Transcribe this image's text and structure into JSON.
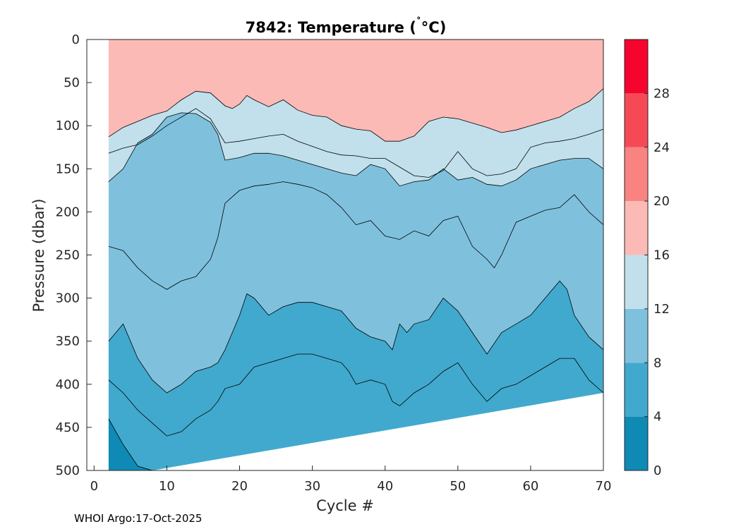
{
  "chart_data": {
    "type": "contour",
    "title": "7842:  Temperature (",
    "title_unit": "°C)",
    "xlabel": "Cycle #",
    "ylabel": "Pressure (dbar)",
    "xlim": [
      -1,
      70
    ],
    "ylim": [
      500,
      0
    ],
    "x_ticks": [
      "0",
      "10",
      "20",
      "30",
      "40",
      "50",
      "60",
      "70"
    ],
    "y_ticks": [
      "0",
      "50",
      "100",
      "150",
      "200",
      "250",
      "300",
      "350",
      "400",
      "450",
      "500"
    ],
    "colorbar": {
      "range": [
        0,
        32
      ],
      "ticks": [
        "0",
        "4",
        "8",
        "12",
        "16",
        "20",
        "24",
        "28"
      ],
      "levels": [
        {
          "from": 0,
          "to": 4,
          "color": "#0E8AB5"
        },
        {
          "from": 4,
          "to": 8,
          "color": "#41A9CD"
        },
        {
          "from": 8,
          "to": 12,
          "color": "#7FC1DD"
        },
        {
          "from": 12,
          "to": 16,
          "color": "#C1E0EC"
        },
        {
          "from": 16,
          "to": 20,
          "color": "#FBBAB6"
        },
        {
          "from": 20,
          "to": 24,
          "color": "#F88380"
        },
        {
          "from": 24,
          "to": 28,
          "color": "#F54A56"
        },
        {
          "from": 28,
          "to": 32,
          "color": "#F5052D"
        }
      ]
    },
    "contour_lines": [
      {
        "level": 16,
        "points": [
          [
            2,
            113
          ],
          [
            4,
            102
          ],
          [
            6,
            95
          ],
          [
            8,
            88
          ],
          [
            10,
            83
          ],
          [
            12,
            70
          ],
          [
            14,
            60
          ],
          [
            16,
            62
          ],
          [
            18,
            77
          ],
          [
            19,
            80
          ],
          [
            20,
            75
          ],
          [
            21,
            65
          ],
          [
            22,
            70
          ],
          [
            24,
            78
          ],
          [
            26,
            70
          ],
          [
            28,
            82
          ],
          [
            30,
            88
          ],
          [
            32,
            90
          ],
          [
            34,
            100
          ],
          [
            36,
            104
          ],
          [
            38,
            106
          ],
          [
            40,
            118
          ],
          [
            42,
            118
          ],
          [
            44,
            112
          ],
          [
            46,
            95
          ],
          [
            48,
            90
          ],
          [
            50,
            92
          ],
          [
            52,
            97
          ],
          [
            54,
            102
          ],
          [
            56,
            108
          ],
          [
            58,
            105
          ],
          [
            60,
            100
          ],
          [
            62,
            95
          ],
          [
            64,
            90
          ],
          [
            66,
            80
          ],
          [
            68,
            72
          ],
          [
            70,
            57
          ]
        ]
      },
      {
        "level": 14,
        "points": [
          [
            2,
            132
          ],
          [
            4,
            126
          ],
          [
            6,
            122
          ],
          [
            8,
            112
          ],
          [
            10,
            100
          ],
          [
            12,
            90
          ],
          [
            14,
            80
          ],
          [
            16,
            92
          ],
          [
            18,
            120
          ],
          [
            20,
            118
          ],
          [
            22,
            115
          ],
          [
            24,
            112
          ],
          [
            26,
            110
          ],
          [
            28,
            118
          ],
          [
            30,
            124
          ],
          [
            32,
            130
          ],
          [
            34,
            134
          ],
          [
            36,
            135
          ],
          [
            38,
            138
          ],
          [
            40,
            138
          ],
          [
            42,
            148
          ],
          [
            44,
            158
          ],
          [
            46,
            160
          ],
          [
            48,
            152
          ],
          [
            50,
            130
          ],
          [
            52,
            150
          ],
          [
            54,
            158
          ],
          [
            56,
            156
          ],
          [
            58,
            150
          ],
          [
            60,
            125
          ],
          [
            62,
            120
          ],
          [
            64,
            118
          ],
          [
            66,
            115
          ],
          [
            68,
            110
          ],
          [
            70,
            104
          ]
        ]
      },
      {
        "level": 12,
        "points": [
          [
            2,
            165
          ],
          [
            4,
            150
          ],
          [
            6,
            120
          ],
          [
            8,
            110
          ],
          [
            10,
            90
          ],
          [
            12,
            85
          ],
          [
            14,
            86
          ],
          [
            16,
            96
          ],
          [
            17,
            110
          ],
          [
            18,
            140
          ],
          [
            20,
            137
          ],
          [
            22,
            132
          ],
          [
            24,
            132
          ],
          [
            26,
            135
          ],
          [
            28,
            140
          ],
          [
            30,
            145
          ],
          [
            32,
            150
          ],
          [
            34,
            155
          ],
          [
            36,
            158
          ],
          [
            38,
            145
          ],
          [
            40,
            150
          ],
          [
            42,
            170
          ],
          [
            44,
            165
          ],
          [
            46,
            163
          ],
          [
            48,
            150
          ],
          [
            50,
            163
          ],
          [
            52,
            160
          ],
          [
            54,
            168
          ],
          [
            56,
            170
          ],
          [
            58,
            163
          ],
          [
            60,
            150
          ],
          [
            62,
            145
          ],
          [
            64,
            140
          ],
          [
            66,
            138
          ],
          [
            68,
            138
          ],
          [
            70,
            150
          ]
        ]
      },
      {
        "level": 10,
        "points": [
          [
            2,
            240
          ],
          [
            4,
            245
          ],
          [
            6,
            265
          ],
          [
            8,
            280
          ],
          [
            10,
            290
          ],
          [
            12,
            280
          ],
          [
            14,
            275
          ],
          [
            16,
            255
          ],
          [
            17,
            230
          ],
          [
            18,
            190
          ],
          [
            20,
            175
          ],
          [
            22,
            170
          ],
          [
            24,
            168
          ],
          [
            26,
            165
          ],
          [
            28,
            168
          ],
          [
            30,
            172
          ],
          [
            32,
            180
          ],
          [
            34,
            195
          ],
          [
            36,
            215
          ],
          [
            38,
            210
          ],
          [
            40,
            228
          ],
          [
            42,
            232
          ],
          [
            44,
            222
          ],
          [
            46,
            228
          ],
          [
            48,
            210
          ],
          [
            50,
            205
          ],
          [
            52,
            240
          ],
          [
            54,
            255
          ],
          [
            55,
            265
          ],
          [
            56,
            250
          ],
          [
            58,
            212
          ],
          [
            60,
            205
          ],
          [
            62,
            198
          ],
          [
            64,
            195
          ],
          [
            66,
            180
          ],
          [
            68,
            200
          ],
          [
            70,
            215
          ]
        ]
      },
      {
        "level": 8,
        "points": [
          [
            2,
            350
          ],
          [
            4,
            330
          ],
          [
            6,
            370
          ],
          [
            8,
            395
          ],
          [
            10,
            410
          ],
          [
            12,
            400
          ],
          [
            14,
            385
          ],
          [
            16,
            380
          ],
          [
            17,
            375
          ],
          [
            18,
            360
          ],
          [
            19,
            340
          ],
          [
            20,
            320
          ],
          [
            21,
            295
          ],
          [
            22,
            300
          ],
          [
            24,
            320
          ],
          [
            26,
            310
          ],
          [
            28,
            305
          ],
          [
            30,
            305
          ],
          [
            32,
            310
          ],
          [
            34,
            315
          ],
          [
            36,
            335
          ],
          [
            38,
            345
          ],
          [
            40,
            350
          ],
          [
            41,
            360
          ],
          [
            42,
            330
          ],
          [
            43,
            340
          ],
          [
            44,
            330
          ],
          [
            46,
            325
          ],
          [
            48,
            300
          ],
          [
            50,
            315
          ],
          [
            52,
            340
          ],
          [
            54,
            365
          ],
          [
            56,
            340
          ],
          [
            58,
            330
          ],
          [
            60,
            320
          ],
          [
            62,
            300
          ],
          [
            64,
            280
          ],
          [
            65,
            290
          ],
          [
            66,
            320
          ],
          [
            68,
            345
          ],
          [
            70,
            360
          ]
        ]
      },
      {
        "level": 6,
        "points": [
          [
            2,
            395
          ],
          [
            4,
            410
          ],
          [
            6,
            430
          ],
          [
            8,
            445
          ],
          [
            10,
            460
          ],
          [
            12,
            455
          ],
          [
            14,
            440
          ],
          [
            16,
            430
          ],
          [
            17,
            420
          ],
          [
            18,
            405
          ],
          [
            20,
            400
          ],
          [
            22,
            380
          ],
          [
            24,
            375
          ],
          [
            26,
            370
          ],
          [
            28,
            365
          ],
          [
            30,
            365
          ],
          [
            32,
            370
          ],
          [
            34,
            375
          ],
          [
            35,
            385
          ],
          [
            36,
            400
          ],
          [
            38,
            395
          ],
          [
            40,
            400
          ],
          [
            41,
            420
          ],
          [
            42,
            425
          ],
          [
            44,
            410
          ],
          [
            46,
            400
          ],
          [
            48,
            385
          ],
          [
            50,
            375
          ],
          [
            52,
            400
          ],
          [
            54,
            420
          ],
          [
            56,
            405
          ],
          [
            58,
            400
          ],
          [
            60,
            390
          ],
          [
            62,
            380
          ],
          [
            64,
            370
          ],
          [
            66,
            370
          ],
          [
            68,
            395
          ],
          [
            70,
            410
          ]
        ]
      },
      {
        "level": 4,
        "points": [
          [
            2,
            440
          ],
          [
            4,
            470
          ],
          [
            6,
            495
          ],
          [
            8,
            500
          ]
        ]
      }
    ]
  },
  "footer": "WHOI Argo:17-Oct-2025"
}
